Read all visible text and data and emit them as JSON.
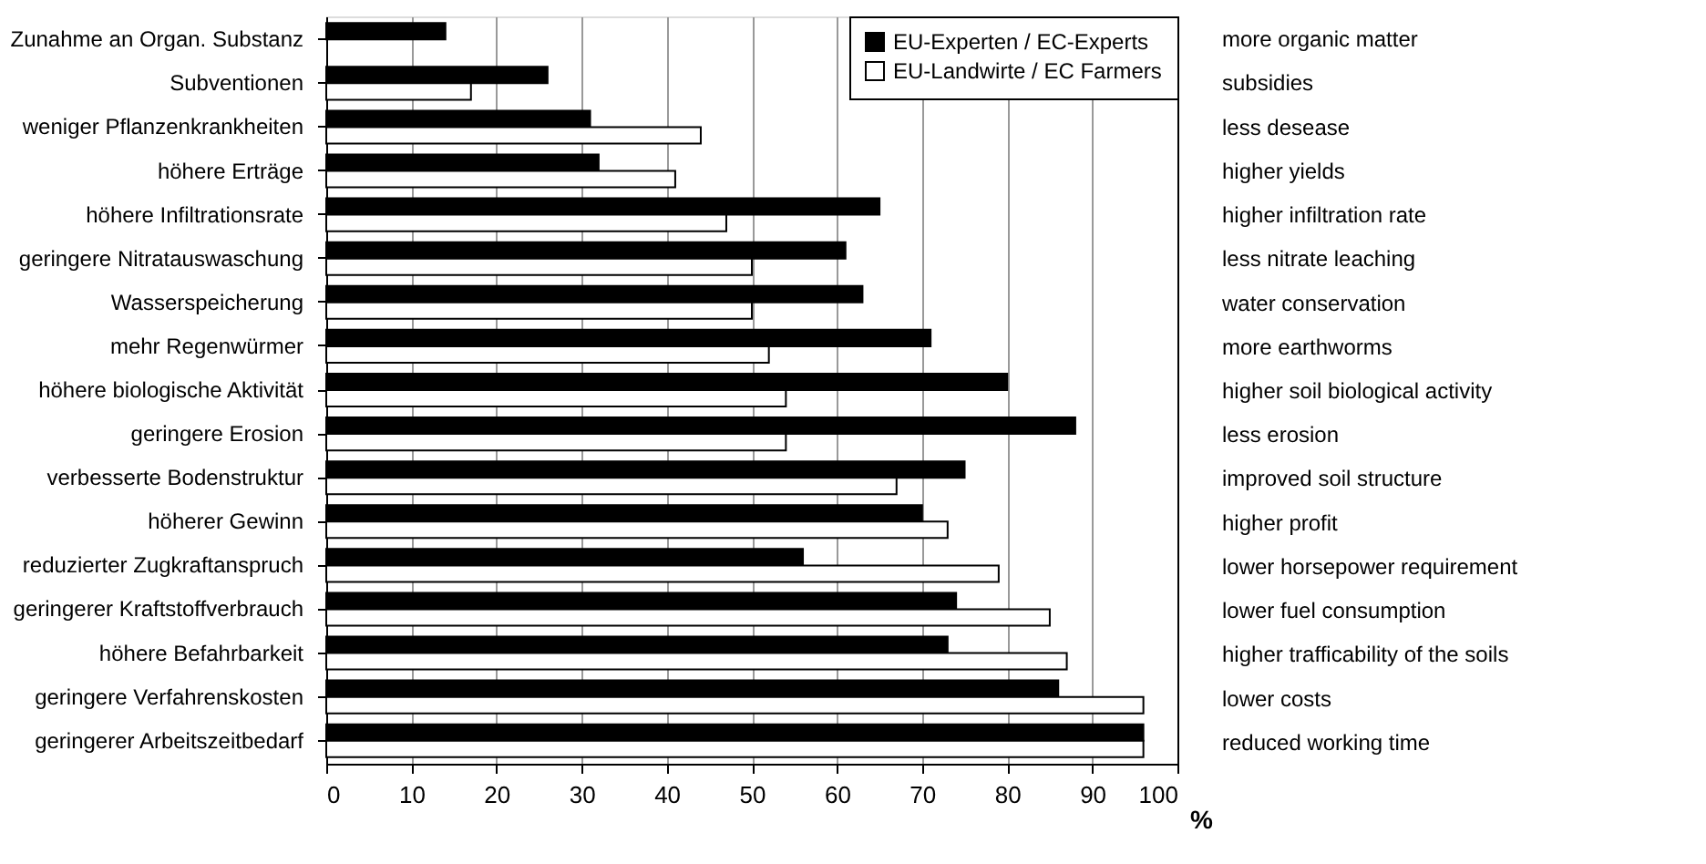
{
  "chart_data": {
    "type": "bar",
    "orientation": "horizontal",
    "categories": [
      "Zunahme an Organ. Substanz",
      "Subventionen",
      "weniger Pflanzenkrankheiten",
      "höhere Erträge",
      "höhere Infiltrationsrate",
      "geringere Nitratauswaschung",
      "Wasserspeicherung",
      "mehr Regenwürmer",
      "höhere biologische Aktivität",
      "geringere Erosion",
      "verbesserte Bodenstruktur",
      "höherer Gewinn",
      "reduzierter Zugkraftanspruch",
      "geringerer Kraftstoffverbrauch",
      "höhere Befahrbarkeit",
      "geringere Verfahrenskosten",
      "geringerer Arbeitszeitbedarf"
    ],
    "y2_categories": [
      "more organic matter",
      "subsidies",
      "less desease",
      "higher yields",
      "higher infiltration rate",
      "less nitrate leaching",
      "water conservation",
      "more earthworms",
      "higher soil biological activity",
      "less erosion",
      "improved soil structure",
      "higher profit",
      "lower horsepower requirement",
      "lower fuel consumption",
      "higher trafficability of the soils",
      "lower costs",
      "reduced working time"
    ],
    "series": [
      {
        "name": "EU-Experten / EC-Experts",
        "color": "#000000",
        "values": [
          14,
          26,
          31,
          32,
          65,
          61,
          63,
          71,
          80,
          88,
          75,
          70,
          56,
          74,
          73,
          86,
          96
        ]
      },
      {
        "name": "EU-Landwirte / EC Farmers",
        "color": "#ffffff",
        "values": [
          null,
          17,
          44,
          41,
          47,
          50,
          50,
          52,
          54,
          54,
          67,
          73,
          79,
          85,
          87,
          96,
          96
        ]
      }
    ],
    "xlim": [
      0,
      100
    ],
    "xticks": [
      0,
      10,
      20,
      30,
      40,
      50,
      60,
      70,
      80,
      90,
      100
    ],
    "xlabel": "%",
    "grid": "x",
    "legend": "top right"
  }
}
